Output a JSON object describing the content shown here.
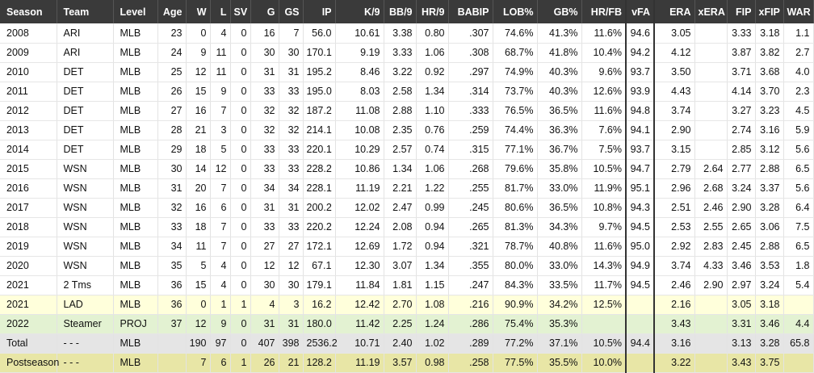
{
  "columns": [
    "Season",
    "Team",
    "Level",
    "Age",
    "W",
    "L",
    "SV",
    "G",
    "GS",
    "IP",
    "K/9",
    "BB/9",
    "HR/9",
    "BABIP",
    "LOB%",
    "GB%",
    "HR/FB",
    "vFA",
    "ERA",
    "xERA",
    "FIP",
    "xFIP",
    "WAR"
  ],
  "rows": [
    {
      "style": "",
      "cells": [
        "2008",
        "ARI",
        "MLB",
        "23",
        "0",
        "4",
        "0",
        "16",
        "7",
        "56.0",
        "10.61",
        "3.38",
        "0.80",
        ".307",
        "74.6%",
        "41.3%",
        "11.6%",
        "94.6",
        "3.05",
        "",
        "3.33",
        "3.18",
        "1.1"
      ]
    },
    {
      "style": "",
      "cells": [
        "2009",
        "ARI",
        "MLB",
        "24",
        "9",
        "11",
        "0",
        "30",
        "30",
        "170.1",
        "9.19",
        "3.33",
        "1.06",
        ".308",
        "68.7%",
        "41.8%",
        "10.4%",
        "94.2",
        "4.12",
        "",
        "3.87",
        "3.82",
        "2.7"
      ]
    },
    {
      "style": "",
      "cells": [
        "2010",
        "DET",
        "MLB",
        "25",
        "12",
        "11",
        "0",
        "31",
        "31",
        "195.2",
        "8.46",
        "3.22",
        "0.92",
        ".297",
        "74.9%",
        "40.3%",
        "9.6%",
        "93.7",
        "3.50",
        "",
        "3.71",
        "3.68",
        "4.0"
      ]
    },
    {
      "style": "",
      "cells": [
        "2011",
        "DET",
        "MLB",
        "26",
        "15",
        "9",
        "0",
        "33",
        "33",
        "195.0",
        "8.03",
        "2.58",
        "1.34",
        ".314",
        "73.7%",
        "40.3%",
        "12.6%",
        "93.9",
        "4.43",
        "",
        "4.14",
        "3.70",
        "2.3"
      ]
    },
    {
      "style": "",
      "cells": [
        "2012",
        "DET",
        "MLB",
        "27",
        "16",
        "7",
        "0",
        "32",
        "32",
        "187.2",
        "11.08",
        "2.88",
        "1.10",
        ".333",
        "76.5%",
        "36.5%",
        "11.6%",
        "94.8",
        "3.74",
        "",
        "3.27",
        "3.23",
        "4.5"
      ]
    },
    {
      "style": "",
      "cells": [
        "2013",
        "DET",
        "MLB",
        "28",
        "21",
        "3",
        "0",
        "32",
        "32",
        "214.1",
        "10.08",
        "2.35",
        "0.76",
        ".259",
        "74.4%",
        "36.3%",
        "7.6%",
        "94.1",
        "2.90",
        "",
        "2.74",
        "3.16",
        "5.9"
      ]
    },
    {
      "style": "",
      "cells": [
        "2014",
        "DET",
        "MLB",
        "29",
        "18",
        "5",
        "0",
        "33",
        "33",
        "220.1",
        "10.29",
        "2.57",
        "0.74",
        ".315",
        "77.1%",
        "36.7%",
        "7.5%",
        "93.7",
        "3.15",
        "",
        "2.85",
        "3.12",
        "5.6"
      ]
    },
    {
      "style": "",
      "cells": [
        "2015",
        "WSN",
        "MLB",
        "30",
        "14",
        "12",
        "0",
        "33",
        "33",
        "228.2",
        "10.86",
        "1.34",
        "1.06",
        ".268",
        "79.6%",
        "35.8%",
        "10.5%",
        "94.7",
        "2.79",
        "2.64",
        "2.77",
        "2.88",
        "6.5"
      ]
    },
    {
      "style": "",
      "cells": [
        "2016",
        "WSN",
        "MLB",
        "31",
        "20",
        "7",
        "0",
        "34",
        "34",
        "228.1",
        "11.19",
        "2.21",
        "1.22",
        ".255",
        "81.7%",
        "33.0%",
        "11.9%",
        "95.1",
        "2.96",
        "2.68",
        "3.24",
        "3.37",
        "5.6"
      ]
    },
    {
      "style": "",
      "cells": [
        "2017",
        "WSN",
        "MLB",
        "32",
        "16",
        "6",
        "0",
        "31",
        "31",
        "200.2",
        "12.02",
        "2.47",
        "0.99",
        ".245",
        "80.6%",
        "36.5%",
        "10.8%",
        "94.3",
        "2.51",
        "2.46",
        "2.90",
        "3.28",
        "6.4"
      ]
    },
    {
      "style": "",
      "cells": [
        "2018",
        "WSN",
        "MLB",
        "33",
        "18",
        "7",
        "0",
        "33",
        "33",
        "220.2",
        "12.24",
        "2.08",
        "0.94",
        ".265",
        "81.3%",
        "34.3%",
        "9.7%",
        "94.5",
        "2.53",
        "2.55",
        "2.65",
        "3.06",
        "7.5"
      ]
    },
    {
      "style": "",
      "cells": [
        "2019",
        "WSN",
        "MLB",
        "34",
        "11",
        "7",
        "0",
        "27",
        "27",
        "172.1",
        "12.69",
        "1.72",
        "0.94",
        ".321",
        "78.7%",
        "40.8%",
        "11.6%",
        "95.0",
        "2.92",
        "2.83",
        "2.45",
        "2.88",
        "6.5"
      ]
    },
    {
      "style": "",
      "cells": [
        "2020",
        "WSN",
        "MLB",
        "35",
        "5",
        "4",
        "0",
        "12",
        "12",
        "67.1",
        "12.30",
        "3.07",
        "1.34",
        ".355",
        "80.0%",
        "33.0%",
        "14.3%",
        "94.9",
        "3.74",
        "4.33",
        "3.46",
        "3.53",
        "1.8"
      ]
    },
    {
      "style": "",
      "cells": [
        "2021",
        "2 Tms",
        "MLB",
        "36",
        "15",
        "4",
        "0",
        "30",
        "30",
        "179.1",
        "11.84",
        "1.81",
        "1.15",
        ".247",
        "84.3%",
        "33.5%",
        "11.7%",
        "94.5",
        "2.46",
        "2.90",
        "2.97",
        "3.24",
        "5.4"
      ]
    },
    {
      "style": "yellow",
      "cells": [
        "2021",
        "LAD",
        "MLB",
        "36",
        "0",
        "1",
        "1",
        "4",
        "3",
        "16.2",
        "12.42",
        "2.70",
        "1.08",
        ".216",
        "90.9%",
        "34.2%",
        "12.5%",
        "",
        "2.16",
        "",
        "3.05",
        "3.18",
        ""
      ]
    },
    {
      "style": "green",
      "cells": [
        "2022",
        "Steamer",
        "PROJ",
        "37",
        "12",
        "9",
        "0",
        "31",
        "31",
        "180.0",
        "11.42",
        "2.25",
        "1.24",
        ".286",
        "75.4%",
        "35.3%",
        "",
        "",
        "3.43",
        "",
        "3.31",
        "3.46",
        "4.4"
      ]
    },
    {
      "style": "gray",
      "cells": [
        "Total",
        "- - -",
        "MLB",
        "",
        "190",
        "97",
        "0",
        "407",
        "398",
        "2536.2",
        "10.71",
        "2.40",
        "1.02",
        ".289",
        "77.2%",
        "37.1%",
        "10.5%",
        "94.4",
        "3.16",
        "",
        "3.13",
        "3.28",
        "65.8"
      ]
    },
    {
      "style": "olive",
      "cells": [
        "Postseason",
        "- - -",
        "MLB",
        "",
        "7",
        "6",
        "1",
        "26",
        "21",
        "128.2",
        "11.19",
        "3.57",
        "0.98",
        ".258",
        "77.5%",
        "35.5%",
        "10.0%",
        "",
        "3.22",
        "",
        "3.43",
        "3.75",
        ""
      ]
    }
  ]
}
